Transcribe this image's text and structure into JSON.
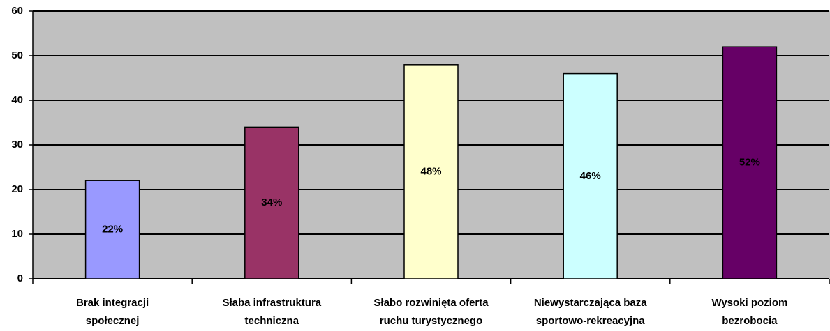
{
  "chart_data": {
    "type": "bar",
    "categories": [
      [
        "Brak integracji",
        "społecznej"
      ],
      [
        "Słaba infrastruktura",
        "techniczna"
      ],
      [
        "Słabo rozwinięta oferta",
        "ruchu turystycznego"
      ],
      [
        "Niewystarczająca baza",
        "sportowo-rekreacyjna"
      ],
      [
        "Wysoki poziom",
        "bezrobocia"
      ]
    ],
    "values": [
      22,
      34,
      48,
      46,
      52
    ],
    "value_labels": [
      "22%",
      "34%",
      "48%",
      "46%",
      "52%"
    ],
    "colors": [
      "#9999ff",
      "#993366",
      "#ffffcc",
      "#ccffff",
      "#660066"
    ],
    "ylim": [
      0,
      60
    ],
    "yticks": [
      0,
      10,
      20,
      30,
      40,
      50,
      60
    ],
    "grid": true
  }
}
